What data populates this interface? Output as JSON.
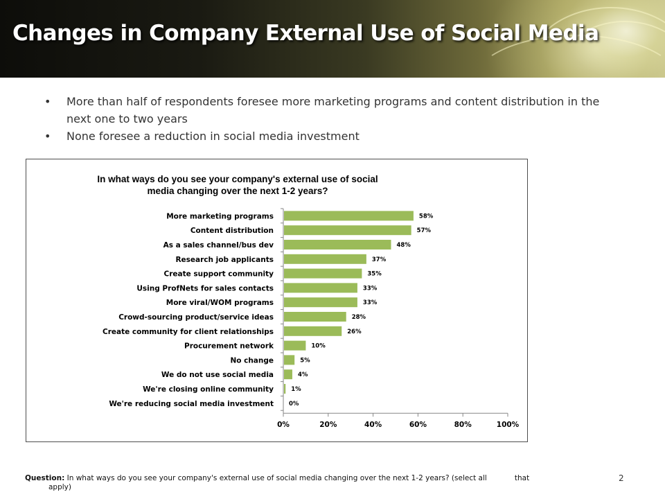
{
  "slide": {
    "title": "Changes in Company External Use of Social Media",
    "bullets": [
      "More than half of respondents  foresee  more marketing programs and content distribution in the next one to two years",
      "None foresee  a reduction in social media investment"
    ],
    "question_label": "Question:",
    "question_text": "In what ways do you see your company's external use of social media changing over the next 1-2 years? (select all            that",
    "question_cont": "apply)",
    "page_number": "2"
  },
  "colors": {
    "bar": "#9bbb59",
    "axis": "#868686"
  },
  "chart_data": {
    "type": "bar",
    "orientation": "horizontal",
    "title": "In what ways do you see your company's external use of social media changing over the next 1-2 years?",
    "categories": [
      "More marketing programs",
      "Content distribution",
      "As a sales channel/bus dev",
      "Research job applicants",
      "Create  support community",
      "Using ProfNets for sales contacts",
      "More viral/WOM programs",
      "Crowd-sourcing product/service ideas",
      "Create community for client relationships",
      "Procurement network",
      "No change",
      "We do not use social media",
      "We're closing online community",
      "We're reducing social media  investment"
    ],
    "values": [
      58,
      57,
      48,
      37,
      35,
      33,
      33,
      28,
      26,
      10,
      5,
      4,
      1,
      0
    ],
    "value_labels": [
      "58%",
      "57%",
      "48%",
      "37%",
      "35%",
      "33%",
      "33%",
      "28%",
      "26%",
      "10%",
      "5%",
      "4%",
      "1%",
      "0%"
    ],
    "xlim": [
      0,
      100
    ],
    "xticks": [
      0,
      20,
      40,
      60,
      80,
      100
    ],
    "xtick_labels": [
      "0%",
      "20%",
      "40%",
      "60%",
      "80%",
      "100%"
    ],
    "xlabel": "",
    "ylabel": "",
    "grid": false,
    "legend": "none"
  }
}
